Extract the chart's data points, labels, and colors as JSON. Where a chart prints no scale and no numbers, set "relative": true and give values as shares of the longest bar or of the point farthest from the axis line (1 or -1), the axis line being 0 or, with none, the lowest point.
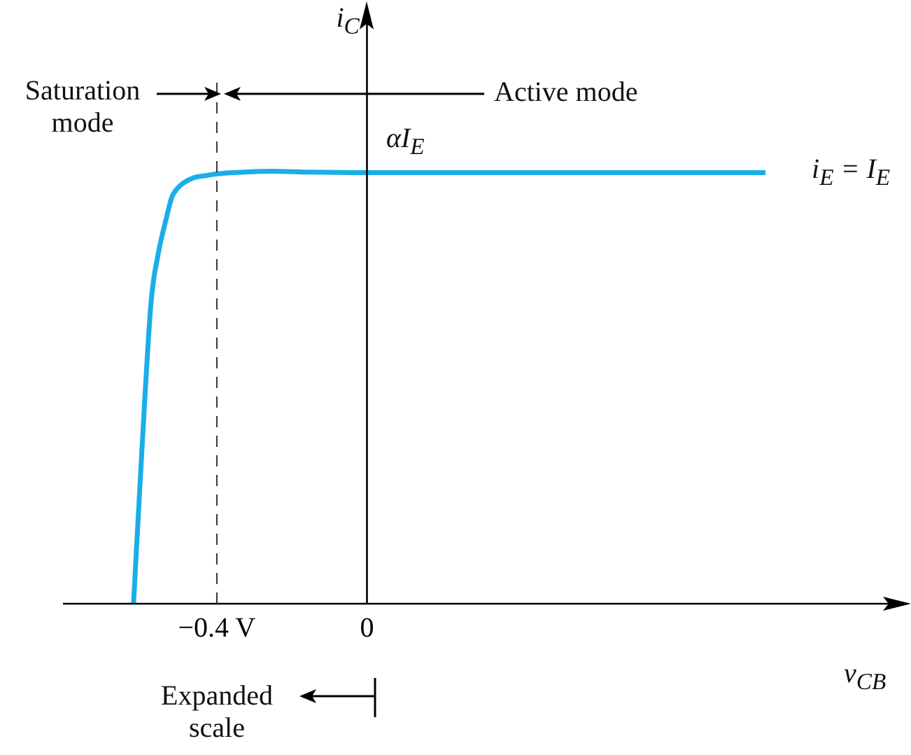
{
  "chart_data": {
    "type": "line",
    "relative": true,
    "xlabel": "v$_{CB}$",
    "ylabel": "i$_{C}$",
    "annotations": [
      "Saturation mode",
      "Active mode",
      "αI$_{E}$",
      "i$_{E}$ = I$_{E}$",
      "Expanded scale"
    ],
    "xlim": [
      -0.81,
      1.39
    ],
    "xticks": [
      {
        "value": -0.4,
        "label": "−0.4 V"
      },
      0
    ],
    "tick_labels": "x",
    "grid": false,
    "legend": false,
    "marker": "none",
    "line_style": "solid",
    "ref_lines": [
      {
        "axis": "x",
        "value": -0.4,
        "color": "#333333",
        "line_style": "dashed"
      }
    ],
    "series": [
      {
        "color": "#1aaee8",
        "x": [
          -0.622,
          -0.6,
          -0.575,
          -0.556,
          -0.535,
          -0.52,
          -0.5,
          -0.465,
          -0.43,
          -0.4,
          -0.33,
          -0.25,
          -0.15,
          0,
          0.5,
          1.062
        ],
        "values": [
          0,
          0.35,
          0.7,
          0.81,
          0.89,
          0.94,
          0.965,
          0.984,
          0.99,
          0.994,
          0.998,
          1,
          0.998,
          0.997,
          0.997,
          0.997
        ]
      }
    ]
  }
}
